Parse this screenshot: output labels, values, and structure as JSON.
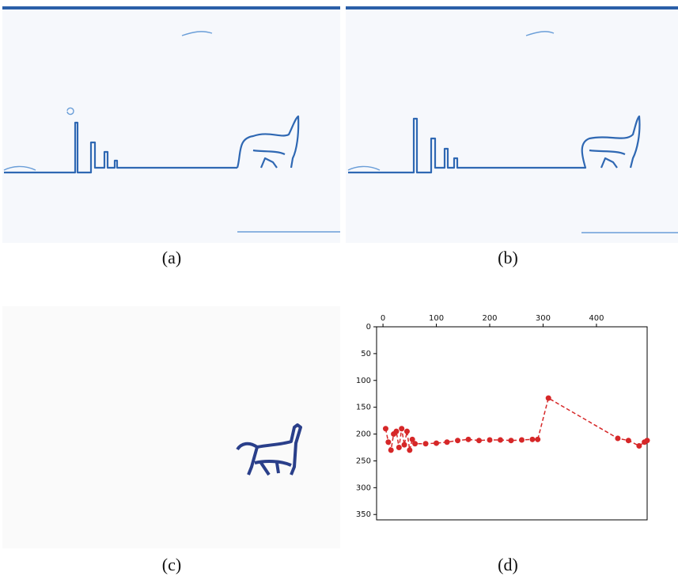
{
  "captions": [
    "(a)",
    "(b)",
    "(c)",
    "(d)"
  ],
  "chart_data": {
    "type": "line",
    "x": [
      5,
      10,
      15,
      20,
      25,
      30,
      35,
      40,
      45,
      50,
      55,
      60,
      80,
      100,
      120,
      140,
      160,
      180,
      200,
      220,
      240,
      260,
      280,
      290,
      310,
      440,
      460,
      480,
      490,
      495
    ],
    "values": [
      190,
      215,
      230,
      200,
      195,
      225,
      190,
      220,
      195,
      230,
      210,
      218,
      218,
      217,
      215,
      212,
      210,
      212,
      211,
      211,
      212,
      211,
      210,
      210,
      133,
      208,
      212,
      222,
      215,
      212
    ],
    "color": "#d62728",
    "xlim": [
      -12,
      495
    ],
    "ylim": [
      360,
      0
    ],
    "xticks": [
      0,
      100,
      200,
      300,
      400
    ],
    "yticks": [
      0,
      50,
      100,
      150,
      200,
      250,
      300,
      350
    ]
  }
}
